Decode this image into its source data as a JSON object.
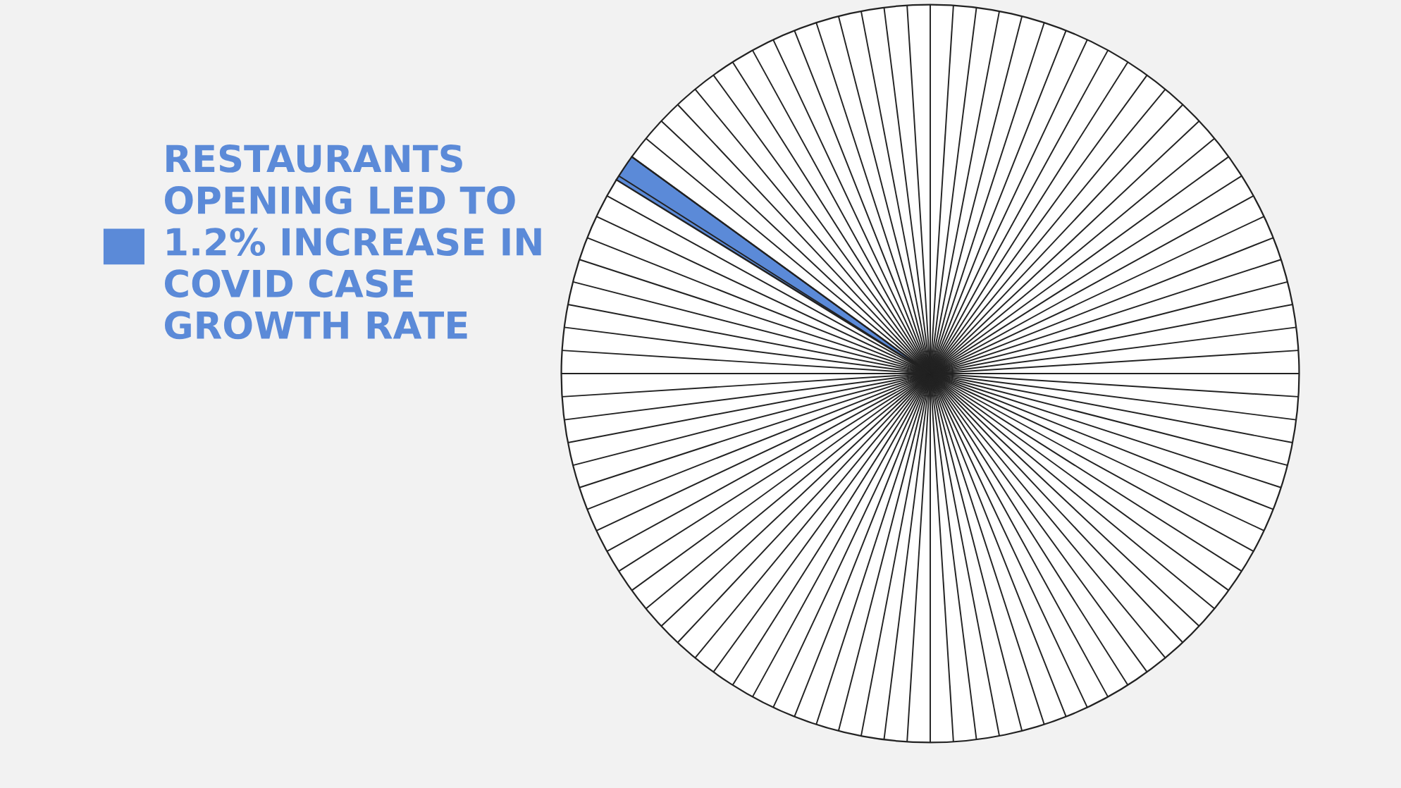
{
  "chart_data": {
    "type": "pie",
    "categories": [
      "RESTAURANTS\nOPENING LED TO\n1.2% INCREASE IN\nCOVID CASE\nGROWTH RATE",
      null
    ],
    "values": [
      1.2,
      98.8
    ],
    "colors": [
      "#5b8ad8",
      "#ffffff"
    ],
    "legend": "left"
  }
}
